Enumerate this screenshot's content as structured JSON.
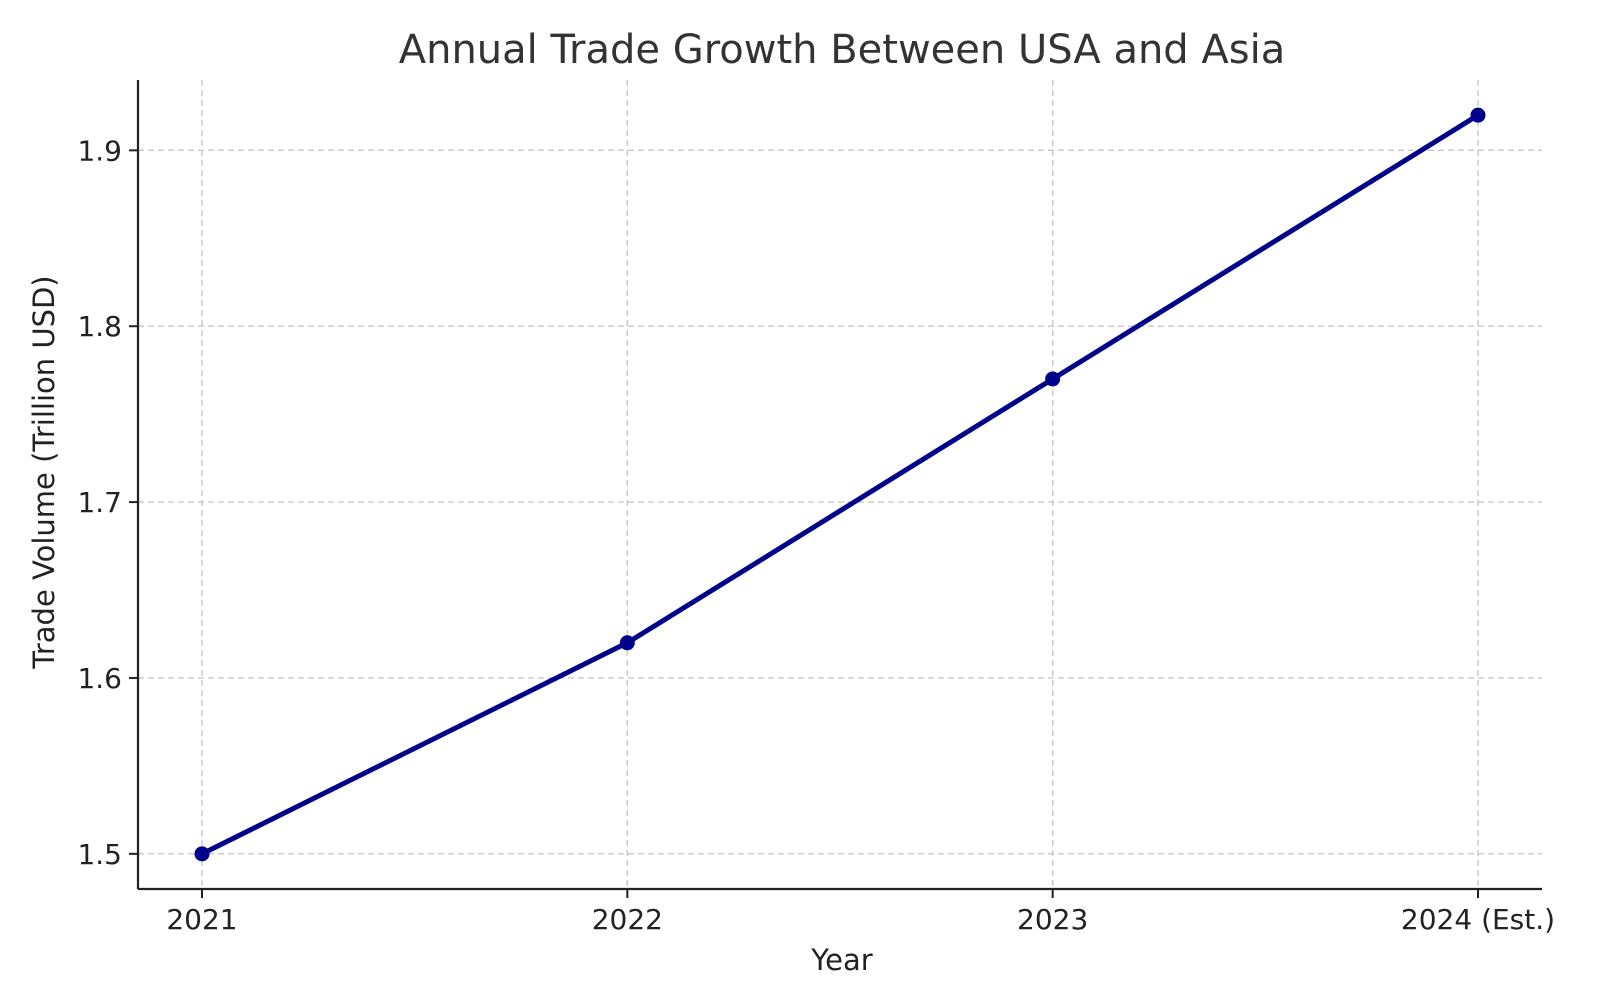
{
  "chart_data": {
    "type": "line",
    "title": "Annual Trade Growth Between USA and Asia",
    "xlabel": "Year",
    "ylabel": "Trade Volume (Trillion USD)",
    "categories": [
      "2021",
      "2022",
      "2023",
      "2024 (Est.)"
    ],
    "series": [
      {
        "values": [
          1.5,
          1.62,
          1.77,
          1.92
        ],
        "color": "#00008b",
        "marker": "circle"
      }
    ],
    "ylim": [
      1.48,
      1.94
    ],
    "yticks": [
      1.5,
      1.6,
      1.7,
      1.8,
      1.9
    ],
    "ytick_labels": [
      "1.5",
      "1.6",
      "1.7",
      "1.8",
      "1.9"
    ],
    "grid": true,
    "legend": "none"
  }
}
